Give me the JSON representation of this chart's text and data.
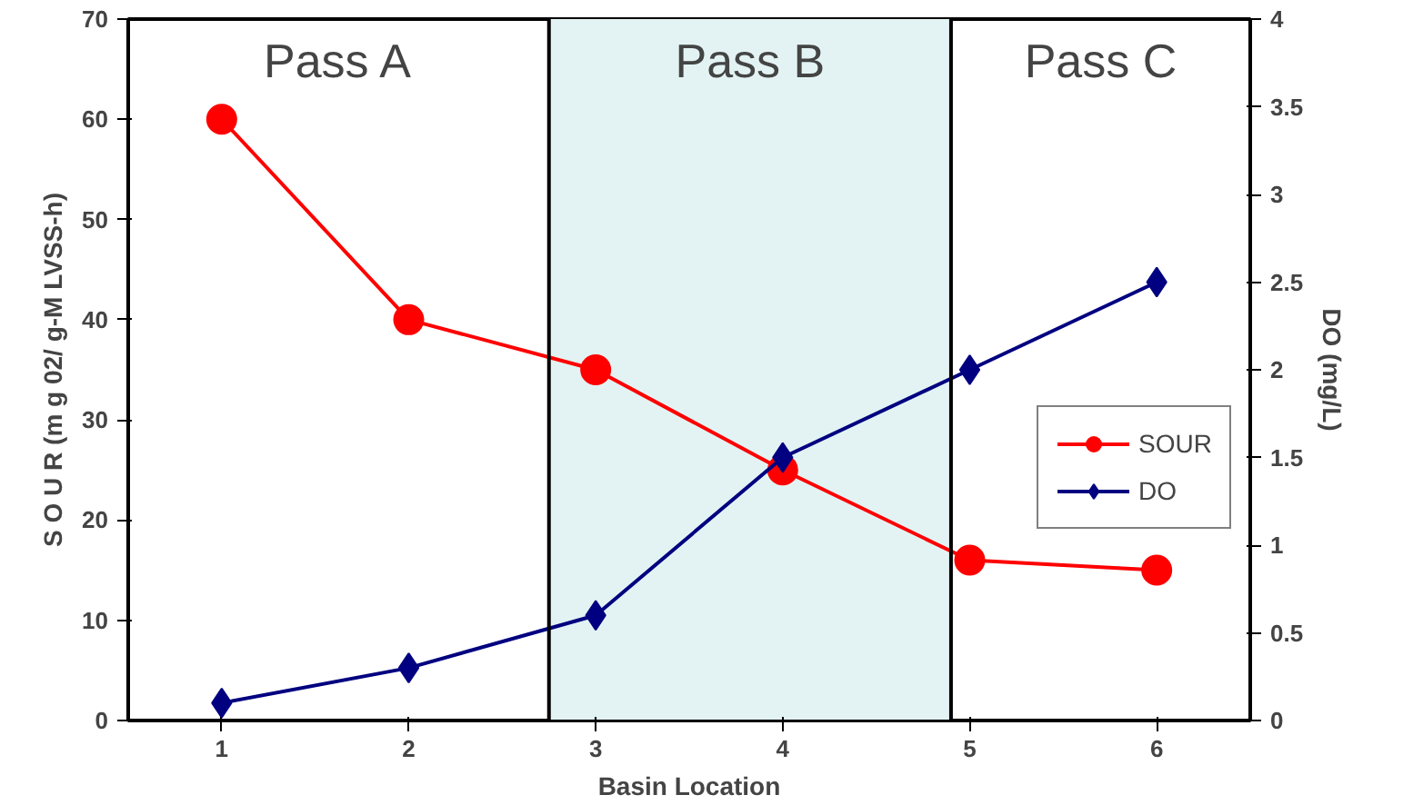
{
  "chart_data": {
    "type": "line",
    "x": [
      1,
      2,
      3,
      4,
      5,
      6
    ],
    "xlabel": "Basin Location",
    "ylabel": "S O U R (m g 02/ g-M LVSS-h)",
    "y2label": "DO (mg/L)",
    "xlim": [
      0.5,
      6.5
    ],
    "xticks": [
      1,
      2,
      3,
      4,
      5,
      6
    ],
    "ylim": [
      0,
      70
    ],
    "yticks": [
      0,
      10,
      20,
      30,
      40,
      50,
      60,
      70
    ],
    "y2lim": [
      0,
      4
    ],
    "y2ticks": [
      0,
      0.5,
      1,
      1.5,
      2,
      2.5,
      3,
      3.5,
      4
    ],
    "series": [
      {
        "name": "SOUR",
        "color": "#ff0000",
        "marker": "circle",
        "values": [
          60,
          40,
          35,
          25,
          16,
          15
        ]
      },
      {
        "name": "DO",
        "color": "#000080",
        "marker": "diamond",
        "axis": "y2",
        "values": [
          0.1,
          0.3,
          0.6,
          1.5,
          2.0,
          2.5
        ]
      }
    ],
    "bands": [
      {
        "axis": "x",
        "from": 2.75,
        "to": 4.9,
        "label": "Pass B",
        "color": "#e3f3f3"
      }
    ],
    "annotations": [
      "Pass A",
      "Pass C"
    ],
    "ref_lines": [
      {
        "axis": "x",
        "value": 2.75,
        "color": "#000000"
      },
      {
        "axis": "x",
        "value": 4.9,
        "color": "#000000"
      }
    ],
    "grid": false,
    "legend": "center right"
  }
}
